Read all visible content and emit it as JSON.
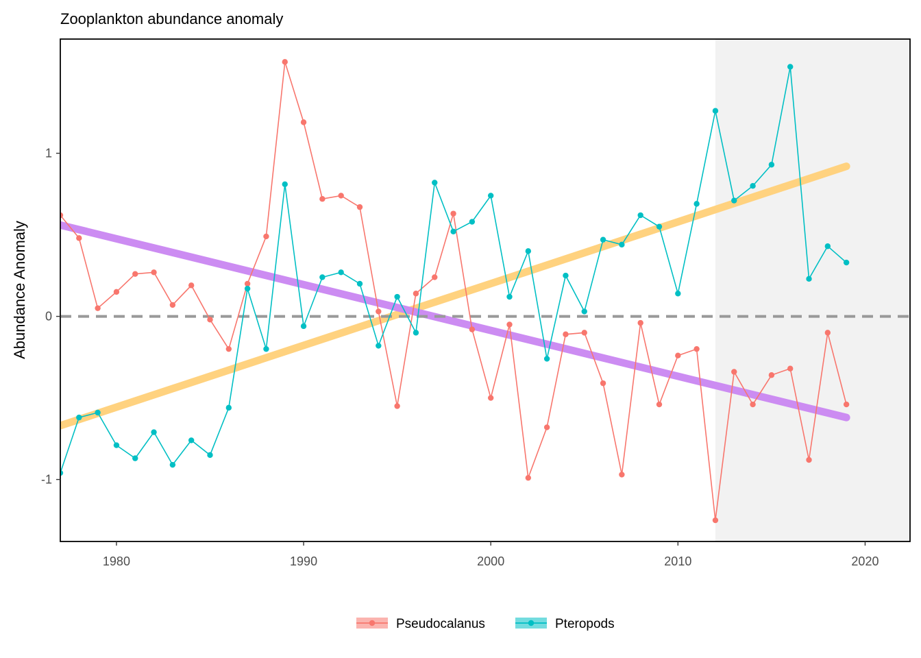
{
  "chart_data": {
    "type": "line",
    "title": "Zooplankton abundance anomaly",
    "xlabel": "",
    "ylabel": "Abundance Anomaly",
    "xlim": [
      1977,
      2022.4
    ],
    "ylim": [
      -1.38,
      1.7
    ],
    "x_ticks": [
      1980,
      1990,
      2000,
      2010,
      2020
    ],
    "y_ticks": [
      -1,
      0,
      1
    ],
    "grid": false,
    "legend_position": "bottom",
    "reference_line": {
      "y": 0,
      "style": "dashed",
      "color": "#999999"
    },
    "shaded_region": {
      "x_start": 2012,
      "x_end": 2022.4,
      "color": "#f2f2f2"
    },
    "series": [
      {
        "name": "Pseudocalanus",
        "color": "#F8766D",
        "x": [
          1977,
          1978,
          1979,
          1980,
          1981,
          1982,
          1983,
          1984,
          1985,
          1986,
          1987,
          1988,
          1989,
          1990,
          1991,
          1992,
          1993,
          1994,
          1995,
          1996,
          1997,
          1998,
          1999,
          2000,
          2001,
          2002,
          2003,
          2004,
          2005,
          2006,
          2007,
          2008,
          2009,
          2010,
          2011,
          2012,
          2013,
          2014,
          2015,
          2016,
          2017,
          2018,
          2019
        ],
        "values": [
          0.62,
          0.48,
          0.05,
          0.15,
          0.26,
          0.27,
          0.07,
          0.19,
          -0.02,
          -0.2,
          0.2,
          0.49,
          1.56,
          1.19,
          0.72,
          0.74,
          0.67,
          0.03,
          -0.55,
          0.14,
          0.24,
          0.63,
          -0.08,
          -0.5,
          -0.05,
          -0.99,
          -0.68,
          -0.11,
          -0.1,
          -0.41,
          -0.97,
          -0.04,
          -0.54,
          -0.24,
          -0.2,
          -1.25,
          -0.34,
          -0.54,
          -0.36,
          -0.32,
          -0.88,
          -0.1,
          -0.54
        ]
      },
      {
        "name": "Pteropods",
        "color": "#00BFC4",
        "x": [
          1977,
          1978,
          1979,
          1980,
          1981,
          1982,
          1983,
          1984,
          1985,
          1986,
          1987,
          1988,
          1989,
          1990,
          1991,
          1992,
          1993,
          1994,
          1995,
          1996,
          1997,
          1998,
          1999,
          2000,
          2001,
          2002,
          2003,
          2004,
          2005,
          2006,
          2007,
          2008,
          2009,
          2010,
          2011,
          2012,
          2013,
          2014,
          2015,
          2016,
          2017,
          2018,
          2019
        ],
        "values": [
          -0.96,
          -0.62,
          -0.59,
          -0.79,
          -0.87,
          -0.71,
          -0.91,
          -0.76,
          -0.85,
          -0.56,
          0.17,
          -0.2,
          0.81,
          -0.06,
          0.24,
          0.27,
          0.2,
          -0.18,
          0.12,
          -0.1,
          0.82,
          0.52,
          0.58,
          0.74,
          0.12,
          0.4,
          -0.26,
          0.25,
          0.03,
          0.47,
          0.44,
          0.62,
          0.55,
          0.14,
          0.69,
          1.26,
          0.71,
          0.8,
          0.93,
          1.53,
          0.23,
          0.43,
          0.33
        ]
      }
    ],
    "trend_lines": [
      {
        "color": "#FFD27F",
        "x": [
          1977,
          2019
        ],
        "y": [
          -0.67,
          0.92
        ]
      },
      {
        "color": "#CC8CF2",
        "x": [
          1977,
          2019
        ],
        "y": [
          0.56,
          -0.62
        ]
      }
    ]
  }
}
